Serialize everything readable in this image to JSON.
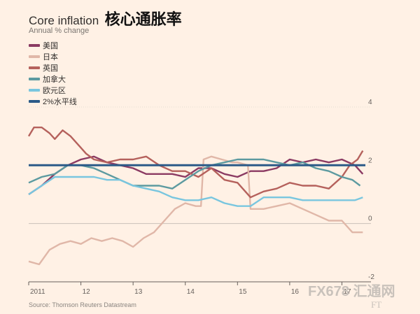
{
  "header": {
    "title_en": "Core inflation",
    "title_zh": "核心通胀率",
    "subtitle": "Annual % change"
  },
  "footer": {
    "source": "Source: Thomson Reuters Datastream"
  },
  "watermark": {
    "text": "FX678 汇通网",
    "ft": "FT"
  },
  "chart_data": {
    "type": "line",
    "title": "Core inflation 核心通胀率",
    "ylabel": "Annual % change",
    "xlim": [
      2011.0,
      2017.45
    ],
    "ylim": [
      -2,
      4
    ],
    "x_ticks": [
      2011,
      2012,
      2013,
      2014,
      2015,
      2016,
      2017
    ],
    "x_tick_labels": [
      "2011",
      "12",
      "13",
      "14",
      "15",
      "16",
      "17"
    ],
    "y_ticks": [
      -2,
      0,
      2,
      4
    ],
    "y_tick_labels": [
      "-2",
      "0",
      "2",
      "4"
    ],
    "grid": "horizontal",
    "legend_position": "top-left",
    "series": [
      {
        "name": "美国",
        "color": "#8b3a62",
        "x": [
          2011.0,
          2011.25,
          2011.5,
          2011.75,
          2012.0,
          2012.25,
          2012.5,
          2012.75,
          2013.0,
          2013.25,
          2013.5,
          2013.75,
          2014.0,
          2014.25,
          2014.5,
          2014.75,
          2015.0,
          2015.25,
          2015.5,
          2015.75,
          2016.0,
          2016.25,
          2016.5,
          2016.75,
          2017.0,
          2017.25,
          2017.4
        ],
        "values": [
          1.0,
          1.3,
          1.7,
          2.0,
          2.2,
          2.3,
          2.1,
          2.0,
          1.9,
          1.7,
          1.7,
          1.7,
          1.6,
          1.9,
          1.9,
          1.7,
          1.6,
          1.8,
          1.8,
          1.9,
          2.2,
          2.1,
          2.2,
          2.1,
          2.2,
          2.0,
          1.7
        ]
      },
      {
        "name": "日本",
        "color": "#e0b7a8",
        "x": [
          2011.0,
          2011.2,
          2011.4,
          2011.6,
          2011.8,
          2012.0,
          2012.2,
          2012.4,
          2012.6,
          2012.8,
          2013.0,
          2013.2,
          2013.4,
          2013.6,
          2013.8,
          2014.0,
          2014.2,
          2014.3,
          2014.35,
          2014.5,
          2014.7,
          2014.9,
          2015.0,
          2015.2,
          2015.25,
          2015.5,
          2015.75,
          2016.0,
          2016.25,
          2016.5,
          2016.75,
          2017.0,
          2017.2,
          2017.4
        ],
        "values": [
          -1.3,
          -1.4,
          -0.9,
          -0.7,
          -0.6,
          -0.7,
          -0.5,
          -0.6,
          -0.5,
          -0.6,
          -0.8,
          -0.5,
          -0.3,
          0.1,
          0.5,
          0.7,
          0.6,
          0.6,
          2.2,
          2.3,
          2.2,
          2.1,
          2.1,
          2.0,
          0.5,
          0.5,
          0.6,
          0.7,
          0.5,
          0.3,
          0.1,
          0.1,
          -0.3,
          -0.3
        ]
      },
      {
        "name": "英国",
        "color": "#b5615c",
        "x": [
          2011.0,
          2011.1,
          2011.25,
          2011.4,
          2011.5,
          2011.65,
          2011.8,
          2012.0,
          2012.1,
          2012.25,
          2012.5,
          2012.75,
          2013.0,
          2013.25,
          2013.5,
          2013.75,
          2014.0,
          2014.25,
          2014.5,
          2014.75,
          2015.0,
          2015.25,
          2015.5,
          2015.75,
          2016.0,
          2016.25,
          2016.5,
          2016.75,
          2017.0,
          2017.15,
          2017.3,
          2017.4
        ],
        "values": [
          3.0,
          3.3,
          3.3,
          3.1,
          2.9,
          3.2,
          3.0,
          2.6,
          2.4,
          2.2,
          2.1,
          2.2,
          2.2,
          2.3,
          2.0,
          1.8,
          1.8,
          1.6,
          1.9,
          1.5,
          1.4,
          0.9,
          1.1,
          1.2,
          1.4,
          1.3,
          1.3,
          1.2,
          1.6,
          2.0,
          2.2,
          2.5
        ]
      },
      {
        "name": "加拿大",
        "color": "#5c9aa0",
        "x": [
          2011.0,
          2011.25,
          2011.5,
          2011.75,
          2012.0,
          2012.25,
          2012.5,
          2012.75,
          2013.0,
          2013.25,
          2013.5,
          2013.75,
          2014.0,
          2014.25,
          2014.5,
          2014.75,
          2015.0,
          2015.25,
          2015.5,
          2015.75,
          2016.0,
          2016.25,
          2016.5,
          2016.75,
          2017.0,
          2017.2,
          2017.35
        ],
        "values": [
          1.4,
          1.6,
          1.7,
          2.0,
          2.0,
          1.9,
          1.7,
          1.5,
          1.3,
          1.3,
          1.3,
          1.2,
          1.5,
          1.8,
          2.0,
          2.1,
          2.2,
          2.2,
          2.2,
          2.1,
          2.0,
          2.1,
          1.9,
          1.8,
          1.6,
          1.5,
          1.3
        ]
      },
      {
        "name": "欧元区",
        "color": "#79c6df",
        "x": [
          2011.0,
          2011.25,
          2011.5,
          2011.75,
          2012.0,
          2012.25,
          2012.5,
          2012.75,
          2013.0,
          2013.25,
          2013.5,
          2013.75,
          2014.0,
          2014.25,
          2014.5,
          2014.75,
          2015.0,
          2015.25,
          2015.5,
          2015.75,
          2016.0,
          2016.25,
          2016.5,
          2016.75,
          2017.0,
          2017.25,
          2017.4
        ],
        "values": [
          1.0,
          1.3,
          1.6,
          1.6,
          1.6,
          1.6,
          1.5,
          1.5,
          1.3,
          1.2,
          1.1,
          0.9,
          0.8,
          0.8,
          0.9,
          0.7,
          0.6,
          0.6,
          0.9,
          0.9,
          0.9,
          0.8,
          0.8,
          0.8,
          0.8,
          0.8,
          0.9
        ]
      },
      {
        "name": "2%水平线",
        "color": "#2b5a88",
        "x": [
          2011.0,
          2017.45
        ],
        "values": [
          2,
          2
        ]
      }
    ]
  }
}
